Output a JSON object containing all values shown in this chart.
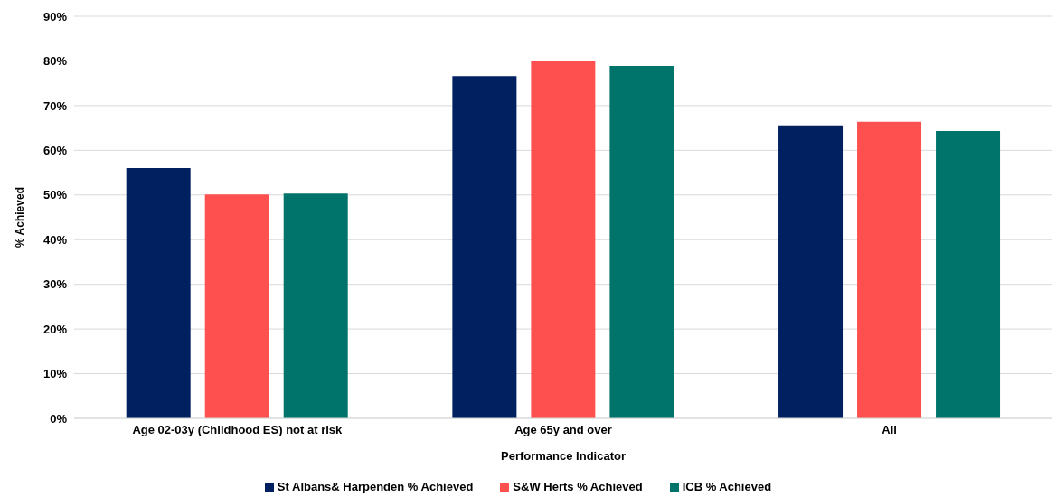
{
  "chart_data": {
    "type": "bar",
    "xlabel": "Performance Indicator",
    "ylabel": "% Achieved",
    "categories": [
      "Age 02-03y (Childhood ES) not at risk",
      "Age 65y and over",
      "All"
    ],
    "series": [
      {
        "name": "St Albans& Harpenden % Achieved",
        "color": "#002060",
        "values": [
          56,
          76.6,
          65.6
        ]
      },
      {
        "name": "S&W Herts % Achieved",
        "color": "#ff5050",
        "values": [
          50.1,
          80.1,
          66.4
        ]
      },
      {
        "name": "ICB % Achieved",
        "color": "#00746a",
        "values": [
          50.3,
          78.9,
          64.3
        ]
      }
    ],
    "ylim": [
      0,
      90
    ],
    "yticks": [
      {
        "value": 0,
        "label": "0%"
      },
      {
        "value": 10,
        "label": "10%"
      },
      {
        "value": 20,
        "label": "20%"
      },
      {
        "value": 30,
        "label": "30%"
      },
      {
        "value": 40,
        "label": "40%"
      },
      {
        "value": 50,
        "label": "50%"
      },
      {
        "value": 60,
        "label": "60%"
      },
      {
        "value": 70,
        "label": "70%"
      },
      {
        "value": 80,
        "label": "80%"
      },
      {
        "value": 90,
        "label": "90%"
      }
    ],
    "grid": "y",
    "legend": "bottom"
  }
}
